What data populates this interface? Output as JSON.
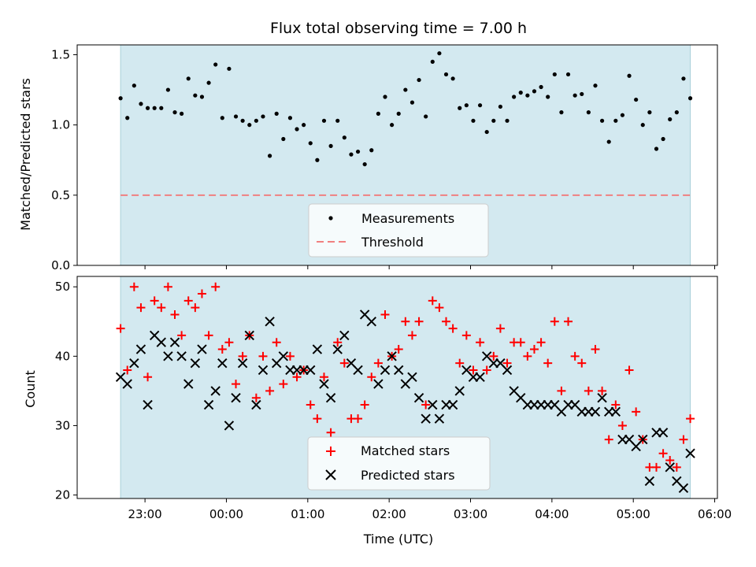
{
  "chart_data": [
    {
      "type": "scatter",
      "title": "Flux total observing time = 7.00 h",
      "xlabel": "",
      "ylabel": "Matched/Predicted stars",
      "ylim": [
        0,
        1.57
      ],
      "yticks": [
        0.0,
        0.5,
        1.0,
        1.5
      ],
      "ytick_labels": [
        "0.0",
        "0.5",
        "1.0",
        "1.5"
      ],
      "shaded_span": [
        "22:42",
        "05:42"
      ],
      "threshold": 0.5,
      "legend_position": "lower-center",
      "legend": [
        "Measurements",
        "Threshold"
      ],
      "colors": {
        "measurements": "#000000",
        "threshold": "#f08080",
        "shade": "#d3e9f0"
      },
      "series": [
        {
          "name": "Measurements",
          "points": [
            [
              "22:42",
              1.19
            ],
            [
              "22:47",
              1.05
            ],
            [
              "22:52",
              1.28
            ],
            [
              "22:57",
              1.15
            ],
            [
              "23:02",
              1.12
            ],
            [
              "23:07",
              1.12
            ],
            [
              "23:12",
              1.12
            ],
            [
              "23:17",
              1.25
            ],
            [
              "23:22",
              1.09
            ],
            [
              "23:27",
              1.08
            ],
            [
              "23:32",
              1.33
            ],
            [
              "23:37",
              1.21
            ],
            [
              "23:42",
              1.2
            ],
            [
              "23:47",
              1.3
            ],
            [
              "23:52",
              1.43
            ],
            [
              "23:57",
              1.05
            ],
            [
              "00:02",
              1.4
            ],
            [
              "00:07",
              1.06
            ],
            [
              "00:12",
              1.03
            ],
            [
              "00:17",
              1.0
            ],
            [
              "00:22",
              1.03
            ],
            [
              "00:27",
              1.06
            ],
            [
              "00:32",
              0.78
            ],
            [
              "00:37",
              1.08
            ],
            [
              "00:42",
              0.9
            ],
            [
              "00:47",
              1.05
            ],
            [
              "00:52",
              0.97
            ],
            [
              "00:57",
              1.0
            ],
            [
              "01:02",
              0.87
            ],
            [
              "01:07",
              0.75
            ],
            [
              "01:12",
              1.03
            ],
            [
              "01:17",
              0.85
            ],
            [
              "01:22",
              1.03
            ],
            [
              "01:27",
              0.91
            ],
            [
              "01:32",
              0.79
            ],
            [
              "01:37",
              0.81
            ],
            [
              "01:42",
              0.72
            ],
            [
              "01:47",
              0.82
            ],
            [
              "01:52",
              1.08
            ],
            [
              "01:57",
              1.2
            ],
            [
              "02:02",
              1.0
            ],
            [
              "02:07",
              1.08
            ],
            [
              "02:12",
              1.25
            ],
            [
              "02:17",
              1.16
            ],
            [
              "02:22",
              1.32
            ],
            [
              "02:27",
              1.06
            ],
            [
              "02:32",
              1.45
            ],
            [
              "02:37",
              1.51
            ],
            [
              "02:42",
              1.36
            ],
            [
              "02:47",
              1.33
            ],
            [
              "02:52",
              1.12
            ],
            [
              "02:57",
              1.14
            ],
            [
              "03:02",
              1.03
            ],
            [
              "03:07",
              1.14
            ],
            [
              "03:12",
              0.95
            ],
            [
              "03:17",
              1.03
            ],
            [
              "03:22",
              1.13
            ],
            [
              "03:27",
              1.03
            ],
            [
              "03:32",
              1.2
            ],
            [
              "03:37",
              1.23
            ],
            [
              "03:42",
              1.21
            ],
            [
              "03:47",
              1.24
            ],
            [
              "03:52",
              1.27
            ],
            [
              "03:57",
              1.2
            ],
            [
              "04:02",
              1.36
            ],
            [
              "04:07",
              1.09
            ],
            [
              "04:12",
              1.36
            ],
            [
              "04:17",
              1.21
            ],
            [
              "04:22",
              1.22
            ],
            [
              "04:27",
              1.09
            ],
            [
              "04:32",
              1.28
            ],
            [
              "04:37",
              1.03
            ],
            [
              "04:42",
              0.88
            ],
            [
              "04:47",
              1.03
            ],
            [
              "04:52",
              1.07
            ],
            [
              "04:57",
              1.35
            ],
            [
              "05:02",
              1.18
            ],
            [
              "05:07",
              1.0
            ],
            [
              "05:12",
              1.09
            ],
            [
              "05:17",
              0.83
            ],
            [
              "05:22",
              0.9
            ],
            [
              "05:27",
              1.04
            ],
            [
              "05:32",
              1.09
            ],
            [
              "05:37",
              1.33
            ],
            [
              "05:42",
              1.19
            ]
          ]
        }
      ]
    },
    {
      "type": "scatter",
      "title": "",
      "xlabel": "Time (UTC)",
      "ylabel": "Count",
      "ylim": [
        19.5,
        51.5
      ],
      "yticks": [
        20,
        30,
        40,
        50
      ],
      "ytick_labels": [
        "20",
        "30",
        "40",
        "50"
      ],
      "xticks": [
        "23:00",
        "00:00",
        "01:00",
        "02:00",
        "03:00",
        "04:00",
        "05:00",
        "06:00"
      ],
      "shaded_span": [
        "22:42",
        "05:42"
      ],
      "legend_position": "lower-center",
      "legend": [
        "Matched stars",
        "Predicted stars"
      ],
      "colors": {
        "matched": "#ff0000",
        "predicted": "#000000",
        "shade": "#d3e9f0"
      },
      "series": [
        {
          "name": "Matched stars",
          "points": [
            [
              "22:42",
              44
            ],
            [
              "22:47",
              38
            ],
            [
              "22:52",
              50
            ],
            [
              "22:57",
              47
            ],
            [
              "23:02",
              37
            ],
            [
              "23:07",
              48
            ],
            [
              "23:12",
              47
            ],
            [
              "23:17",
              50
            ],
            [
              "23:22",
              46
            ],
            [
              "23:27",
              43
            ],
            [
              "23:32",
              48
            ],
            [
              "23:37",
              47
            ],
            [
              "23:42",
              49
            ],
            [
              "23:47",
              43
            ],
            [
              "23:52",
              50
            ],
            [
              "23:57",
              41
            ],
            [
              "00:02",
              42
            ],
            [
              "00:07",
              36
            ],
            [
              "00:12",
              40
            ],
            [
              "00:17",
              43
            ],
            [
              "00:22",
              34
            ],
            [
              "00:27",
              40
            ],
            [
              "00:32",
              35
            ],
            [
              "00:37",
              42
            ],
            [
              "00:42",
              36
            ],
            [
              "00:47",
              40
            ],
            [
              "00:52",
              37
            ],
            [
              "00:57",
              38
            ],
            [
              "01:02",
              33
            ],
            [
              "01:07",
              31
            ],
            [
              "01:12",
              37
            ],
            [
              "01:17",
              29
            ],
            [
              "01:22",
              42
            ],
            [
              "01:27",
              39
            ],
            [
              "01:32",
              31
            ],
            [
              "01:37",
              31
            ],
            [
              "01:42",
              33
            ],
            [
              "01:47",
              37
            ],
            [
              "01:52",
              39
            ],
            [
              "01:57",
              46
            ],
            [
              "02:02",
              40
            ],
            [
              "02:07",
              41
            ],
            [
              "02:12",
              45
            ],
            [
              "02:17",
              43
            ],
            [
              "02:22",
              45
            ],
            [
              "02:27",
              33
            ],
            [
              "02:32",
              48
            ],
            [
              "02:37",
              47
            ],
            [
              "02:42",
              45
            ],
            [
              "02:47",
              44
            ],
            [
              "02:52",
              39
            ],
            [
              "02:57",
              43
            ],
            [
              "03:02",
              38
            ],
            [
              "03:07",
              42
            ],
            [
              "03:12",
              38
            ],
            [
              "03:17",
              40
            ],
            [
              "03:22",
              44
            ],
            [
              "03:27",
              39
            ],
            [
              "03:32",
              42
            ],
            [
              "03:37",
              42
            ],
            [
              "03:42",
              40
            ],
            [
              "03:47",
              41
            ],
            [
              "03:52",
              42
            ],
            [
              "03:57",
              39
            ],
            [
              "04:02",
              45
            ],
            [
              "04:07",
              35
            ],
            [
              "04:12",
              45
            ],
            [
              "04:17",
              40
            ],
            [
              "04:22",
              39
            ],
            [
              "04:27",
              35
            ],
            [
              "04:32",
              41
            ],
            [
              "04:37",
              35
            ],
            [
              "04:42",
              28
            ],
            [
              "04:47",
              33
            ],
            [
              "04:52",
              30
            ],
            [
              "04:57",
              38
            ],
            [
              "05:02",
              32
            ],
            [
              "05:07",
              28
            ],
            [
              "05:12",
              24
            ],
            [
              "05:17",
              24
            ],
            [
              "05:22",
              26
            ],
            [
              "05:27",
              25
            ],
            [
              "05:32",
              24
            ],
            [
              "05:37",
              28
            ],
            [
              "05:42",
              31
            ]
          ]
        },
        {
          "name": "Predicted stars",
          "points": [
            [
              "22:42",
              37
            ],
            [
              "22:47",
              36
            ],
            [
              "22:52",
              39
            ],
            [
              "22:57",
              41
            ],
            [
              "23:02",
              33
            ],
            [
              "23:07",
              43
            ],
            [
              "23:12",
              42
            ],
            [
              "23:17",
              40
            ],
            [
              "23:22",
              42
            ],
            [
              "23:27",
              40
            ],
            [
              "23:32",
              36
            ],
            [
              "23:37",
              39
            ],
            [
              "23:42",
              41
            ],
            [
              "23:47",
              33
            ],
            [
              "23:52",
              35
            ],
            [
              "23:57",
              39
            ],
            [
              "00:02",
              30
            ],
            [
              "00:07",
              34
            ],
            [
              "00:12",
              39
            ],
            [
              "00:17",
              43
            ],
            [
              "00:22",
              33
            ],
            [
              "00:27",
              38
            ],
            [
              "00:32",
              45
            ],
            [
              "00:37",
              39
            ],
            [
              "00:42",
              40
            ],
            [
              "00:47",
              38
            ],
            [
              "00:52",
              38
            ],
            [
              "00:57",
              38
            ],
            [
              "01:02",
              38
            ],
            [
              "01:07",
              41
            ],
            [
              "01:12",
              36
            ],
            [
              "01:17",
              34
            ],
            [
              "01:22",
              41
            ],
            [
              "01:27",
              43
            ],
            [
              "01:32",
              39
            ],
            [
              "01:37",
              38
            ],
            [
              "01:42",
              46
            ],
            [
              "01:47",
              45
            ],
            [
              "01:52",
              36
            ],
            [
              "01:57",
              38
            ],
            [
              "02:02",
              40
            ],
            [
              "02:07",
              38
            ],
            [
              "02:12",
              36
            ],
            [
              "02:17",
              37
            ],
            [
              "02:22",
              34
            ],
            [
              "02:27",
              31
            ],
            [
              "02:32",
              33
            ],
            [
              "02:37",
              31
            ],
            [
              "02:42",
              33
            ],
            [
              "02:47",
              33
            ],
            [
              "02:52",
              35
            ],
            [
              "02:57",
              38
            ],
            [
              "03:02",
              37
            ],
            [
              "03:07",
              37
            ],
            [
              "03:12",
              40
            ],
            [
              "03:17",
              39
            ],
            [
              "03:22",
              39
            ],
            [
              "03:27",
              38
            ],
            [
              "03:32",
              35
            ],
            [
              "03:37",
              34
            ],
            [
              "03:42",
              33
            ],
            [
              "03:47",
              33
            ],
            [
              "03:52",
              33
            ],
            [
              "03:57",
              33
            ],
            [
              "04:02",
              33
            ],
            [
              "04:07",
              32
            ],
            [
              "04:12",
              33
            ],
            [
              "04:17",
              33
            ],
            [
              "04:22",
              32
            ],
            [
              "04:27",
              32
            ],
            [
              "04:32",
              32
            ],
            [
              "04:37",
              34
            ],
            [
              "04:42",
              32
            ],
            [
              "04:47",
              32
            ],
            [
              "04:52",
              28
            ],
            [
              "04:57",
              28
            ],
            [
              "05:02",
              27
            ],
            [
              "05:07",
              28
            ],
            [
              "05:12",
              22
            ],
            [
              "05:17",
              29
            ],
            [
              "05:22",
              29
            ],
            [
              "05:27",
              24
            ],
            [
              "05:32",
              22
            ],
            [
              "05:37",
              21
            ],
            [
              "05:42",
              26
            ]
          ]
        }
      ]
    }
  ]
}
